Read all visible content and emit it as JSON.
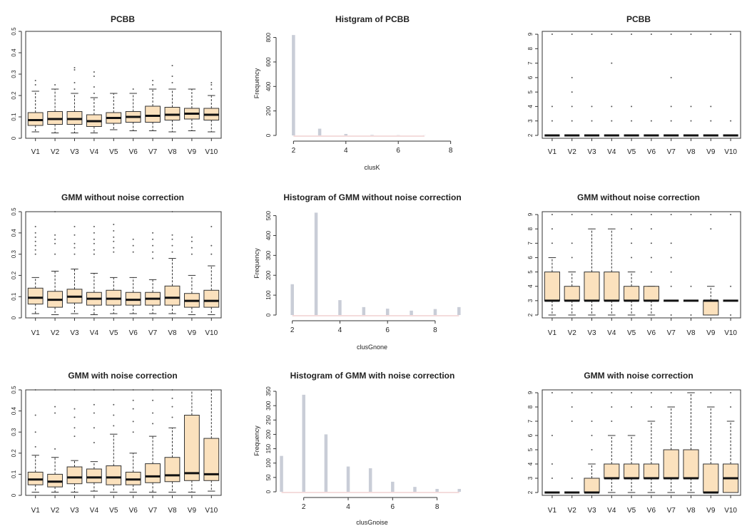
{
  "figure": {
    "colors": {
      "box_fill": "#fbe1bd",
      "hist_bar": "#c9cdd7",
      "hist_baseline": "#e9b8b8",
      "axis": "#333333",
      "outlier": "#555555"
    }
  },
  "chart_data": [
    {
      "type": "boxplot",
      "title": "PCBB",
      "ylim": [
        0,
        0.5
      ],
      "yticks": [
        0,
        0.1,
        0.2,
        0.3,
        0.4,
        0.5
      ],
      "categories": [
        "V1",
        "V2",
        "V3",
        "V4",
        "V5",
        "V6",
        "V7",
        "V8",
        "V9",
        "V10"
      ],
      "boxes": [
        {
          "q1": 0.06,
          "median": 0.085,
          "q3": 0.12,
          "wlo": 0.03,
          "whi": 0.22,
          "out": [
            0.25,
            0.27
          ]
        },
        {
          "q1": 0.065,
          "median": 0.09,
          "q3": 0.125,
          "wlo": 0.025,
          "whi": 0.23,
          "out": [
            0.25
          ]
        },
        {
          "q1": 0.065,
          "median": 0.09,
          "q3": 0.125,
          "wlo": 0.025,
          "whi": 0.21,
          "out": [
            0.23,
            0.26,
            0.32,
            0.33
          ]
        },
        {
          "q1": 0.055,
          "median": 0.08,
          "q3": 0.11,
          "wlo": 0.025,
          "whi": 0.19,
          "out": [
            0.21,
            0.24,
            0.29,
            0.31
          ]
        },
        {
          "q1": 0.07,
          "median": 0.095,
          "q3": 0.12,
          "wlo": 0.04,
          "whi": 0.21,
          "out": []
        },
        {
          "q1": 0.075,
          "median": 0.1,
          "q3": 0.125,
          "wlo": 0.035,
          "whi": 0.21,
          "out": [
            0.23
          ]
        },
        {
          "q1": 0.075,
          "median": 0.105,
          "q3": 0.15,
          "wlo": 0.035,
          "whi": 0.23,
          "out": [
            0.25,
            0.27
          ]
        },
        {
          "q1": 0.085,
          "median": 0.11,
          "q3": 0.145,
          "wlo": 0.03,
          "whi": 0.23,
          "out": [
            0.26,
            0.29,
            0.34
          ]
        },
        {
          "q1": 0.09,
          "median": 0.115,
          "q3": 0.14,
          "wlo": 0.035,
          "whi": 0.23,
          "out": []
        },
        {
          "q1": 0.085,
          "median": 0.11,
          "q3": 0.14,
          "wlo": 0.03,
          "whi": 0.2,
          "out": [
            0.23,
            0.25,
            0.26
          ]
        }
      ]
    },
    {
      "type": "histogram",
      "title": "Histgram of PCBB",
      "xlabel": "clusK",
      "ylabel": "Frequency",
      "xlim": [
        1.5,
        8.5
      ],
      "xticks": [
        2,
        4,
        6,
        8
      ],
      "ylim": [
        0,
        850
      ],
      "yticks": [
        0,
        200,
        400,
        600,
        800
      ],
      "x": [
        2,
        3,
        4,
        5,
        6,
        7
      ],
      "values": [
        820,
        55,
        12,
        4,
        2,
        1
      ]
    },
    {
      "type": "boxplot",
      "title": "PCBB",
      "ylim": [
        1.8,
        9.2
      ],
      "yticks": [
        2,
        3,
        4,
        5,
        6,
        7,
        8,
        9
      ],
      "categories": [
        "V1",
        "V2",
        "V3",
        "V4",
        "V5",
        "V6",
        "V7",
        "V8",
        "V9",
        "V10"
      ],
      "boxes": [
        {
          "q1": 2,
          "median": 2,
          "q3": 2,
          "wlo": 2,
          "whi": 2,
          "out": [
            3,
            4,
            9
          ]
        },
        {
          "q1": 2,
          "median": 2,
          "q3": 2,
          "wlo": 2,
          "whi": 2,
          "out": [
            3,
            4,
            5,
            6,
            9
          ]
        },
        {
          "q1": 2,
          "median": 2,
          "q3": 2,
          "wlo": 2,
          "whi": 2,
          "out": [
            3,
            4,
            9
          ]
        },
        {
          "q1": 2,
          "median": 2,
          "q3": 2,
          "wlo": 2,
          "whi": 2,
          "out": [
            3,
            4,
            7,
            9
          ]
        },
        {
          "q1": 2,
          "median": 2,
          "q3": 2,
          "wlo": 2,
          "whi": 2,
          "out": [
            3,
            4,
            9
          ]
        },
        {
          "q1": 2,
          "median": 2,
          "q3": 2,
          "wlo": 2,
          "whi": 2,
          "out": [
            3,
            9
          ]
        },
        {
          "q1": 2,
          "median": 2,
          "q3": 2,
          "wlo": 2,
          "whi": 2,
          "out": [
            3,
            4,
            6,
            9
          ]
        },
        {
          "q1": 2,
          "median": 2,
          "q3": 2,
          "wlo": 2,
          "whi": 2,
          "out": [
            3,
            4,
            9
          ]
        },
        {
          "q1": 2,
          "median": 2,
          "q3": 2,
          "wlo": 2,
          "whi": 2,
          "out": [
            3,
            4,
            9
          ]
        },
        {
          "q1": 2,
          "median": 2,
          "q3": 2,
          "wlo": 2,
          "whi": 2,
          "out": [
            3,
            9
          ]
        }
      ]
    },
    {
      "type": "boxplot",
      "title": "GMM without noise correction",
      "ylim": [
        0,
        0.5
      ],
      "yticks": [
        0,
        0.1,
        0.2,
        0.3,
        0.4,
        0.5
      ],
      "categories": [
        "V1",
        "V2",
        "V3",
        "V4",
        "V5",
        "V6",
        "V7",
        "V8",
        "V9",
        "V10"
      ],
      "boxes": [
        {
          "q1": 0.065,
          "median": 0.095,
          "q3": 0.14,
          "wlo": 0.02,
          "whi": 0.19,
          "out": [
            0.3,
            0.32,
            0.34,
            0.36,
            0.38,
            0.4,
            0.43
          ]
        },
        {
          "q1": 0.05,
          "median": 0.085,
          "q3": 0.125,
          "wlo": 0.015,
          "whi": 0.22,
          "out": [
            0.3,
            0.35,
            0.37,
            0.39,
            0.5
          ]
        },
        {
          "q1": 0.07,
          "median": 0.1,
          "q3": 0.135,
          "wlo": 0.02,
          "whi": 0.23,
          "out": [
            0.3,
            0.33,
            0.35,
            0.39,
            0.43
          ]
        },
        {
          "q1": 0.06,
          "median": 0.09,
          "q3": 0.12,
          "wlo": 0.015,
          "whi": 0.21,
          "out": [
            0.3,
            0.32,
            0.35,
            0.37,
            0.4,
            0.43
          ]
        },
        {
          "q1": 0.06,
          "median": 0.09,
          "q3": 0.13,
          "wlo": 0.02,
          "whi": 0.19,
          "out": [
            0.31,
            0.33,
            0.36,
            0.38,
            0.41,
            0.44
          ]
        },
        {
          "q1": 0.06,
          "median": 0.085,
          "q3": 0.12,
          "wlo": 0.02,
          "whi": 0.19,
          "out": [
            0.31,
            0.34,
            0.37
          ]
        },
        {
          "q1": 0.06,
          "median": 0.09,
          "q3": 0.12,
          "wlo": 0.02,
          "whi": 0.18,
          "out": [
            0.28,
            0.31,
            0.34,
            0.37,
            0.4
          ]
        },
        {
          "q1": 0.06,
          "median": 0.095,
          "q3": 0.15,
          "wlo": 0.02,
          "whi": 0.28,
          "out": [
            0.31,
            0.34,
            0.37,
            0.39,
            0.5
          ]
        },
        {
          "q1": 0.05,
          "median": 0.08,
          "q3": 0.115,
          "wlo": 0.015,
          "whi": 0.2,
          "out": [
            0.3,
            0.33,
            0.36,
            0.38
          ]
        },
        {
          "q1": 0.05,
          "median": 0.08,
          "q3": 0.13,
          "wlo": 0.015,
          "whi": 0.245,
          "out": [
            0.3,
            0.34,
            0.43
          ]
        }
      ]
    },
    {
      "type": "histogram",
      "title": "Histogram of GMM without noise correction",
      "xlabel": "clusGnone",
      "ylabel": "Frequency",
      "xlim": [
        1.5,
        9.2
      ],
      "xticks": [
        2,
        4,
        6,
        8
      ],
      "ylim": [
        0,
        520
      ],
      "yticks": [
        0,
        100,
        200,
        300,
        400,
        500
      ],
      "x": [
        2,
        3,
        4,
        5,
        6,
        7,
        8,
        9
      ],
      "values": [
        155,
        515,
        75,
        40,
        32,
        22,
        30,
        40
      ]
    },
    {
      "type": "boxplot",
      "title": "GMM without noise correction",
      "ylim": [
        1.8,
        9.2
      ],
      "yticks": [
        2,
        3,
        4,
        5,
        6,
        7,
        8,
        9
      ],
      "categories": [
        "V1",
        "V2",
        "V3",
        "V4",
        "V5",
        "V6",
        "V7",
        "V8",
        "V9",
        "V10"
      ],
      "boxes": [
        {
          "q1": 3,
          "median": 3,
          "q3": 5,
          "wlo": 2,
          "whi": 6,
          "out": [
            7,
            8,
            9
          ]
        },
        {
          "q1": 3,
          "median": 3,
          "q3": 4,
          "wlo": 2,
          "whi": 5,
          "out": [
            6,
            7,
            9
          ]
        },
        {
          "q1": 3,
          "median": 3,
          "q3": 5,
          "wlo": 2,
          "whi": 8,
          "out": [
            9
          ]
        },
        {
          "q1": 3,
          "median": 3,
          "q3": 5,
          "wlo": 2,
          "whi": 8,
          "out": [
            9
          ]
        },
        {
          "q1": 3,
          "median": 3,
          "q3": 4,
          "wlo": 2,
          "whi": 5,
          "out": [
            6,
            7,
            8,
            9
          ]
        },
        {
          "q1": 3,
          "median": 3,
          "q3": 4,
          "wlo": 2,
          "whi": 4,
          "out": [
            5,
            6,
            7,
            8,
            9
          ]
        },
        {
          "q1": 3,
          "median": 3,
          "q3": 3,
          "wlo": 3,
          "whi": 3,
          "out": [
            2,
            4,
            5,
            6,
            7,
            9
          ]
        },
        {
          "q1": 3,
          "median": 3,
          "q3": 3,
          "wlo": 3,
          "whi": 3,
          "out": [
            2,
            4,
            9
          ]
        },
        {
          "q1": 2,
          "median": 3,
          "q3": 3,
          "wlo": 2,
          "whi": 4,
          "out": [
            8,
            9
          ]
        },
        {
          "q1": 3,
          "median": 3,
          "q3": 3,
          "wlo": 3,
          "whi": 3,
          "out": [
            2,
            4,
            9
          ]
        }
      ]
    },
    {
      "type": "boxplot",
      "title": "GMM with noise correction",
      "ylim": [
        0,
        0.5
      ],
      "yticks": [
        0,
        0.1,
        0.2,
        0.3,
        0.4,
        0.5
      ],
      "categories": [
        "V1",
        "V2",
        "V3",
        "V4",
        "V5",
        "V6",
        "V7",
        "V8",
        "V9",
        "V10"
      ],
      "boxes": [
        {
          "q1": 0.05,
          "median": 0.075,
          "q3": 0.11,
          "wlo": 0.015,
          "whi": 0.19,
          "out": [
            0.23,
            0.3,
            0.38,
            0.5
          ]
        },
        {
          "q1": 0.04,
          "median": 0.065,
          "q3": 0.1,
          "wlo": 0.015,
          "whi": 0.18,
          "out": [
            0.22,
            0.39,
            0.42,
            0.5
          ]
        },
        {
          "q1": 0.055,
          "median": 0.085,
          "q3": 0.135,
          "wlo": 0.015,
          "whi": 0.165,
          "out": [
            0.28,
            0.32,
            0.37,
            0.41,
            0.5
          ]
        },
        {
          "q1": 0.06,
          "median": 0.085,
          "q3": 0.125,
          "wlo": 0.02,
          "whi": 0.16,
          "out": [
            0.25,
            0.32,
            0.39,
            0.43,
            0.5
          ]
        },
        {
          "q1": 0.05,
          "median": 0.085,
          "q3": 0.14,
          "wlo": 0.015,
          "whi": 0.29,
          "out": [
            0.33,
            0.38,
            0.43,
            0.5
          ]
        },
        {
          "q1": 0.05,
          "median": 0.075,
          "q3": 0.11,
          "wlo": 0.015,
          "whi": 0.2,
          "out": [
            0.3,
            0.35,
            0.41,
            0.45,
            0.5
          ]
        },
        {
          "q1": 0.06,
          "median": 0.09,
          "q3": 0.15,
          "wlo": 0.015,
          "whi": 0.28,
          "out": [
            0.34,
            0.39,
            0.45,
            0.5
          ]
        },
        {
          "q1": 0.065,
          "median": 0.095,
          "q3": 0.18,
          "wlo": 0.015,
          "whi": 0.32,
          "out": [
            0.37,
            0.42,
            0.46,
            0.5
          ]
        },
        {
          "q1": 0.07,
          "median": 0.105,
          "q3": 0.38,
          "wlo": 0.015,
          "whi": 0.5,
          "out": []
        },
        {
          "q1": 0.07,
          "median": 0.1,
          "q3": 0.27,
          "wlo": 0.02,
          "whi": 0.5,
          "out": []
        }
      ]
    },
    {
      "type": "histogram",
      "title": "Histogram of GMM with noise correction",
      "xlabel": "clusGnoise",
      "ylabel": "Frequency",
      "xlim": [
        0.95,
        9.2
      ],
      "xticks": [
        2,
        4,
        6,
        8
      ],
      "ylim": [
        0,
        355
      ],
      "yticks": [
        0,
        50,
        100,
        150,
        200,
        250,
        300,
        350
      ],
      "x": [
        1,
        2,
        3,
        4,
        5,
        6,
        7,
        8,
        9
      ],
      "values": [
        125,
        338,
        200,
        88,
        82,
        35,
        17,
        10,
        10
      ]
    },
    {
      "type": "boxplot",
      "title": "GMM with noise correction",
      "ylim": [
        1.8,
        9.2
      ],
      "yticks": [
        2,
        3,
        4,
        5,
        6,
        7,
        8,
        9
      ],
      "categories": [
        "V1",
        "V2",
        "V3",
        "V4",
        "V5",
        "V6",
        "V7",
        "V8",
        "V9",
        "V10"
      ],
      "boxes": [
        {
          "q1": 2,
          "median": 2,
          "q3": 2,
          "wlo": 2,
          "whi": 2,
          "out": [
            3,
            4,
            6,
            9
          ]
        },
        {
          "q1": 2,
          "median": 2,
          "q3": 2,
          "wlo": 2,
          "whi": 2,
          "out": [
            3,
            7,
            8,
            9
          ]
        },
        {
          "q1": 2,
          "median": 2,
          "q3": 3,
          "wlo": 2,
          "whi": 4,
          "out": [
            5,
            6,
            7,
            9
          ]
        },
        {
          "q1": 3,
          "median": 3,
          "q3": 4,
          "wlo": 2,
          "whi": 6,
          "out": [
            7,
            8,
            9
          ]
        },
        {
          "q1": 3,
          "median": 3,
          "q3": 4,
          "wlo": 2,
          "whi": 6,
          "out": [
            8,
            9
          ]
        },
        {
          "q1": 3,
          "median": 3,
          "q3": 4,
          "wlo": 2,
          "whi": 7,
          "out": [
            8,
            9
          ]
        },
        {
          "q1": 3,
          "median": 3,
          "q3": 5,
          "wlo": 2,
          "whi": 8,
          "out": [
            9
          ]
        },
        {
          "q1": 3,
          "median": 3,
          "q3": 5,
          "wlo": 2,
          "whi": 9,
          "out": []
        },
        {
          "q1": 2,
          "median": 2,
          "q3": 4,
          "wlo": 2,
          "whi": 8,
          "out": [
            9
          ]
        },
        {
          "q1": 2,
          "median": 3,
          "q3": 4,
          "wlo": 2,
          "whi": 7,
          "out": [
            8,
            9
          ]
        }
      ]
    }
  ]
}
